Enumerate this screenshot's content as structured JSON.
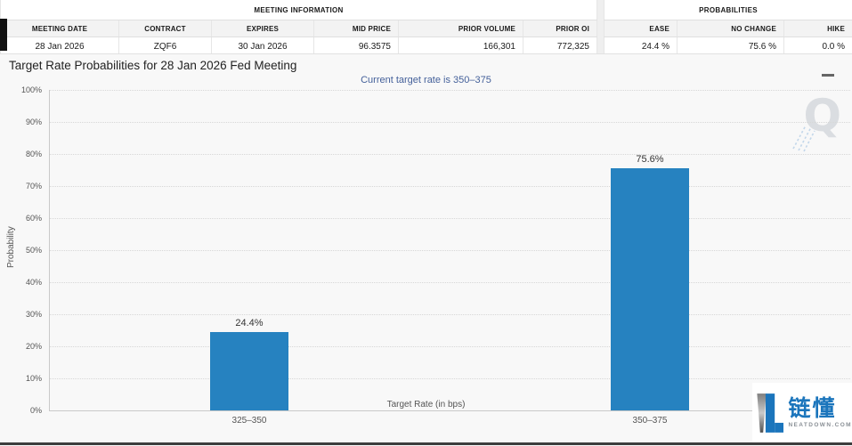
{
  "meeting_info": {
    "title": "MEETING INFORMATION",
    "columns": [
      "MEETING DATE",
      "CONTRACT",
      "EXPIRES",
      "MID PRICE",
      "PRIOR VOLUME",
      "PRIOR OI"
    ],
    "values": [
      "28 Jan 2026",
      "ZQF6",
      "30 Jan 2026",
      "96.3575",
      "166,301",
      "772,325"
    ]
  },
  "probabilities": {
    "title": "PROBABILITIES",
    "columns": [
      "EASE",
      "NO CHANGE",
      "HIKE"
    ],
    "values": [
      "24.4 %",
      "75.6 %",
      "0.0 %"
    ]
  },
  "chart_data": {
    "type": "bar",
    "title": "Target Rate Probabilities for 28 Jan 2026 Fed Meeting",
    "subtitle": "Current target rate is 350–375",
    "categories": [
      "325–350",
      "350–375"
    ],
    "values": [
      24.4,
      75.6
    ],
    "data_labels": [
      "24.4%",
      "75.6%"
    ],
    "xlabel": "Target Rate (in bps)",
    "ylabel": "Probability",
    "ylim": [
      0,
      100
    ],
    "ytick_labels": [
      "0%",
      "10%",
      "20%",
      "30%",
      "40%",
      "50%",
      "60%",
      "70%",
      "80%",
      "90%",
      "100%"
    ],
    "grid": "dotted horizontal",
    "legend": "none",
    "bar_color": "#2682c0"
  },
  "watermark": {
    "glyph": "Q"
  },
  "logo": {
    "cn_name": "链懂",
    "domain": "NEATDOWN.COM",
    "brand_color": "#1b75bc"
  }
}
